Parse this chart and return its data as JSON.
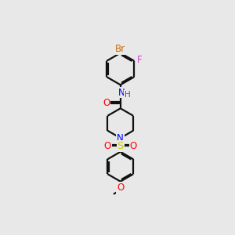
{
  "bg_color": "#e8e8e8",
  "bond_color": "#111111",
  "atom_colors": {
    "Br": "#cc6600",
    "F": "#cc44cc",
    "N": "#0000ff",
    "O": "#ff0000",
    "S": "#cccc00",
    "H": "#009900",
    "C": "#111111"
  },
  "figsize": [
    3.0,
    3.0
  ],
  "dpi": 100,
  "lw": 1.6,
  "fontsize": 8.5
}
